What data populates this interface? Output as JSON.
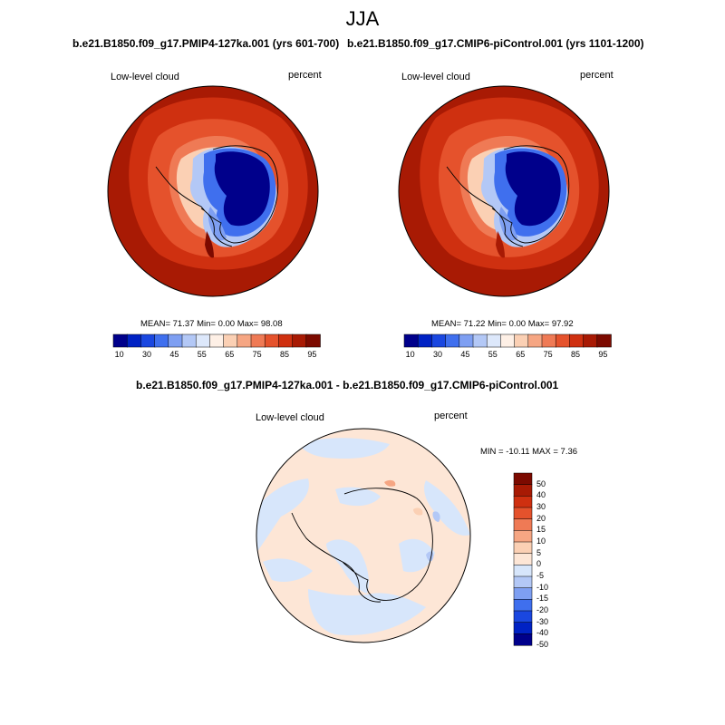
{
  "season": "JJA",
  "panels": [
    {
      "title": "b.e21.B1850.f09_g17.PMIP4-127ka.001 (yrs 601-700)",
      "variable": "Low-level cloud",
      "units": "percent",
      "stats": {
        "mean_label": "MEAN=",
        "mean": "71.37",
        "min_label": "Min=",
        "min": "0.00",
        "max_label": "Max=",
        "max": "98.08"
      }
    },
    {
      "title": "b.e21.B1850.f09_g17.CMIP6-piControl.001 (yrs 1101-1200)",
      "variable": "Low-level cloud",
      "units": "percent",
      "stats": {
        "mean_label": "MEAN=",
        "mean": "71.22",
        "min_label": "Min=",
        "min": "0.00",
        "max_label": "Max=",
        "max": "97.92"
      }
    }
  ],
  "abs_colorbar": {
    "ticks": [
      "10",
      "30",
      "45",
      "55",
      "65",
      "75",
      "85",
      "95"
    ],
    "colors": [
      "#00008b",
      "#0022c4",
      "#1a47e0",
      "#3f6fee",
      "#7e9ff2",
      "#b3c8f6",
      "#dde8fb",
      "#fef0e6",
      "#fbd0b4",
      "#f6a683",
      "#ef7a55",
      "#e5522c",
      "#cf3010",
      "#a81a04",
      "#7c0a00"
    ]
  },
  "difference": {
    "title": "b.e21.B1850.f09_g17.PMIP4-127ka.001 - b.e21.B1850.f09_g17.CMIP6-piControl.001",
    "variable": "Low-level cloud",
    "units": "percent",
    "stats": {
      "min_label": "MIN =",
      "min": "-10.11",
      "max_label": "MAX =",
      "max": "7.36"
    },
    "colorbar_ticks": [
      "50",
      "40",
      "30",
      "20",
      "15",
      "10",
      "5",
      "0",
      "-5",
      "-10",
      "-15",
      "-20",
      "-30",
      "-40",
      "-50"
    ],
    "colors": [
      "#7c0a00",
      "#a81a04",
      "#cf3010",
      "#e5522c",
      "#ef7a55",
      "#f6a683",
      "#fbd0b4",
      "#fde6d6",
      "#d7e6fb",
      "#b3c8f6",
      "#7e9ff2",
      "#3f6fee",
      "#1a47e0",
      "#0022c4",
      "#00008b"
    ]
  }
}
